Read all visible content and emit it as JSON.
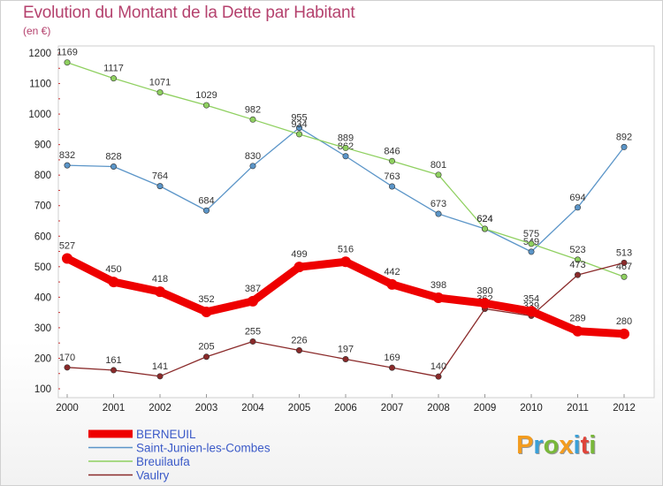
{
  "title": "Evolution du Montant de la Dette par Habitant",
  "unit_label": "(en €)",
  "logo": {
    "letters": [
      "P",
      "r",
      "o",
      "x",
      "i",
      "t",
      "i"
    ],
    "colors": [
      "#f39c1f",
      "#3aa0d8",
      "#79b83a",
      "#f39c1f",
      "#3aa0d8",
      "#e0443a",
      "#79b83a"
    ]
  },
  "chart_data": {
    "type": "line",
    "title": "Evolution du Montant de la Dette par Habitant",
    "ylabel": "(en €)",
    "xlabel": "",
    "x": [
      2000,
      2001,
      2002,
      2003,
      2004,
      2005,
      2006,
      2007,
      2008,
      2009,
      2010,
      2011,
      2012
    ],
    "ylim": [
      100,
      1200
    ],
    "yticks": [
      100,
      200,
      300,
      400,
      500,
      600,
      700,
      800,
      900,
      1000,
      1100,
      1200
    ],
    "grid": false,
    "legend_position": "bottom-left",
    "series": [
      {
        "name": "BERNEUIL",
        "color": "#ee0000",
        "thick": true,
        "values": [
          527,
          450,
          418,
          352,
          387,
          499,
          516,
          442,
          398,
          380,
          354,
          289,
          280
        ]
      },
      {
        "name": "Saint-Junien-les-Combes",
        "color": "#5b95c8",
        "thick": false,
        "values": [
          832,
          828,
          764,
          684,
          830,
          955,
          862,
          763,
          673,
          624,
          549,
          694,
          892
        ]
      },
      {
        "name": "Breuilaufa",
        "color": "#8fd060",
        "thick": false,
        "values": [
          1169,
          1117,
          1071,
          1029,
          982,
          934,
          889,
          846,
          801,
          624,
          575,
          523,
          467
        ]
      },
      {
        "name": "Vaulry",
        "color": "#8a2a2a",
        "thick": false,
        "values": [
          170,
          161,
          141,
          205,
          255,
          226,
          197,
          169,
          140,
          362,
          339,
          473,
          513
        ]
      }
    ]
  }
}
